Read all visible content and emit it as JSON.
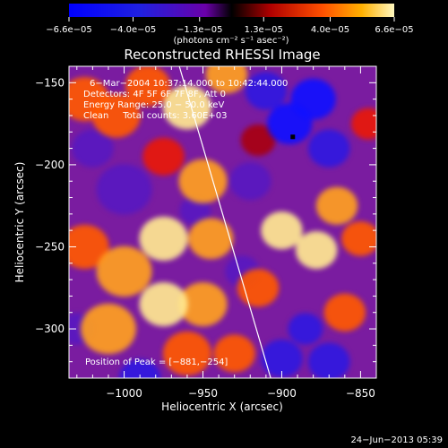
{
  "chart_data": {
    "type": "heatmap",
    "title": "Reconstructed RHESSI Image",
    "xlabel": "Heliocentric X (arcsec)",
    "ylabel": "Heliocentric Y (arcsec)",
    "xlim": [
      -1035,
      -840
    ],
    "ylim": [
      -330,
      -140
    ],
    "x_ticks": [
      -1000,
      -950,
      -900,
      -850
    ],
    "y_ticks": [
      -150,
      -200,
      -250,
      -300
    ],
    "x_tick_labels": [
      "−1000",
      "−950",
      "−900",
      "−850"
    ],
    "y_tick_labels": [
      "−150",
      "−200",
      "−250",
      "−300"
    ],
    "colorbar": {
      "range": [
        -6.6e-05,
        6.6e-05
      ],
      "ticks": [
        -6.6e-05,
        -4e-05,
        -1.3e-05,
        1.3e-05,
        4e-05,
        6.6e-05
      ],
      "tick_labels": [
        "−6.6e−05",
        "−4.0e−05",
        "−1.3e−05",
        "1.3e−05",
        "4.0e−05",
        "6.6e−05"
      ],
      "units": "(photons cm⁻² s⁻¹ asec⁻²)"
    },
    "annotations": {
      "time": "6−Mar−2004 10:37:14.000 to 10:42:44.000",
      "detectors": "Detectors: 4F 5F 6F 7F 8F, Att 0",
      "energy": "Energy Range: 25.0 − 50.0 keV",
      "clean": "Clean     Total counts: 3.60E+03",
      "peak": "Position of Peak = [−881,−254]"
    },
    "peak": [
      -881,
      -254
    ],
    "limb_line": [
      [
        -965,
        -140
      ],
      [
        -907,
        -330
      ]
    ],
    "blobs": [
      {
        "x": -960,
        "y": -165,
        "a": 0.9,
        "s": 14
      },
      {
        "x": -985,
        "y": -152,
        "a": 0.6,
        "s": 13
      },
      {
        "x": -1005,
        "y": -170,
        "a": 0.7,
        "s": 14
      },
      {
        "x": -1025,
        "y": -160,
        "a": 0.7,
        "s": 14
      },
      {
        "x": -935,
        "y": -145,
        "a": 0.8,
        "s": 12
      },
      {
        "x": -950,
        "y": -210,
        "a": 0.75,
        "s": 14
      },
      {
        "x": -975,
        "y": -195,
        "a": 0.5,
        "s": 12
      },
      {
        "x": -975,
        "y": -245,
        "a": 0.95,
        "s": 14
      },
      {
        "x": -945,
        "y": -245,
        "a": 0.8,
        "s": 13
      },
      {
        "x": -1000,
        "y": -265,
        "a": 0.8,
        "s": 16
      },
      {
        "x": -1025,
        "y": -250,
        "a": 0.6,
        "s": 14
      },
      {
        "x": -1010,
        "y": -300,
        "a": 0.75,
        "s": 16
      },
      {
        "x": -975,
        "y": -285,
        "a": 0.9,
        "s": 14
      },
      {
        "x": -950,
        "y": -285,
        "a": 0.85,
        "s": 14
      },
      {
        "x": -960,
        "y": -315,
        "a": 0.6,
        "s": 14
      },
      {
        "x": -930,
        "y": -315,
        "a": 0.7,
        "s": 12
      },
      {
        "x": -915,
        "y": -275,
        "a": 0.6,
        "s": 12
      },
      {
        "x": -900,
        "y": -240,
        "a": 0.95,
        "s": 12
      },
      {
        "x": -878,
        "y": -252,
        "a": 1.0,
        "s": 12
      },
      {
        "x": -865,
        "y": -225,
        "a": 0.75,
        "s": 12
      },
      {
        "x": -850,
        "y": -245,
        "a": 0.7,
        "s": 11
      },
      {
        "x": -860,
        "y": -290,
        "a": 0.55,
        "s": 12
      },
      {
        "x": -845,
        "y": -175,
        "a": 0.5,
        "s": 10
      },
      {
        "x": -915,
        "y": -185,
        "a": 0.3,
        "s": 10
      },
      {
        "x": -895,
        "y": -175,
        "a": -0.9,
        "s": 13
      },
      {
        "x": -880,
        "y": -160,
        "a": -0.8,
        "s": 13
      },
      {
        "x": -910,
        "y": -155,
        "a": -0.7,
        "s": 12
      },
      {
        "x": -870,
        "y": -190,
        "a": -0.6,
        "s": 12
      },
      {
        "x": -1000,
        "y": -215,
        "a": -0.4,
        "s": 16
      },
      {
        "x": -1020,
        "y": -190,
        "a": -0.3,
        "s": 12
      },
      {
        "x": -920,
        "y": -210,
        "a": -0.4,
        "s": 12
      },
      {
        "x": -990,
        "y": -330,
        "a": -0.5,
        "s": 12
      },
      {
        "x": -900,
        "y": -318,
        "a": -0.6,
        "s": 12
      },
      {
        "x": -870,
        "y": -320,
        "a": -0.7,
        "s": 12
      },
      {
        "x": -885,
        "y": -300,
        "a": -0.5,
        "s": 10
      },
      {
        "x": -925,
        "y": -265,
        "a": -0.3,
        "s": 10
      },
      {
        "x": -955,
        "y": -228,
        "a": -0.25,
        "s": 9
      },
      {
        "x": -1030,
        "y": -300,
        "a": -0.3,
        "s": 10
      }
    ]
  },
  "footer": {
    "date": "24−Jun−2013 05:39"
  }
}
